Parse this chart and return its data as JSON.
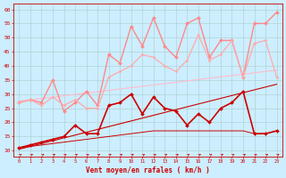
{
  "bg_color": "#cceeff",
  "grid_color": "#aacccc",
  "xlabel": "Vent moyen/en rafales ( km/h )",
  "xlim": [
    -0.5,
    23.5
  ],
  "ylim": [
    8,
    62
  ],
  "yticks": [
    10,
    15,
    20,
    25,
    30,
    35,
    40,
    45,
    50,
    55,
    60
  ],
  "xticks": [
    0,
    1,
    2,
    3,
    4,
    5,
    6,
    7,
    8,
    9,
    10,
    11,
    12,
    13,
    14,
    15,
    16,
    17,
    18,
    19,
    20,
    21,
    22,
    23
  ],
  "lines": [
    {
      "name": "trend_upper_pink",
      "x": [
        0,
        23
      ],
      "y": [
        27.5,
        38.5
      ],
      "color": "#ffbbcc",
      "lw": 0.8,
      "marker": null,
      "zorder": 2
    },
    {
      "name": "trend_lower_red",
      "x": [
        0,
        23
      ],
      "y": [
        10.5,
        33.5
      ],
      "color": "#cc0000",
      "lw": 0.8,
      "marker": null,
      "zorder": 2
    },
    {
      "name": "wavy_upper_pink",
      "x": [
        0,
        1,
        2,
        3,
        4,
        5,
        6,
        7,
        8,
        9,
        10,
        11,
        12,
        13,
        14,
        15,
        16,
        17,
        18,
        19,
        20,
        21,
        22,
        23
      ],
      "y": [
        27,
        28,
        27,
        35,
        24,
        27,
        31,
        26,
        44,
        41,
        54,
        47,
        57,
        47,
        43,
        55,
        57,
        43,
        49,
        49,
        36,
        55,
        55,
        59
      ],
      "color": "#ff8888",
      "lw": 1.0,
      "marker": "D",
      "ms": 2.0,
      "zorder": 3
    },
    {
      "name": "wavy_mid_pink",
      "x": [
        0,
        1,
        2,
        3,
        4,
        5,
        6,
        7,
        8,
        9,
        10,
        11,
        12,
        13,
        14,
        15,
        16,
        17,
        18,
        19,
        20,
        21,
        22,
        23
      ],
      "y": [
        27,
        28,
        26,
        29,
        26,
        28,
        25,
        25,
        36,
        38,
        40,
        44,
        43,
        40,
        38,
        42,
        51,
        42,
        44,
        49,
        36,
        48,
        49,
        36
      ],
      "color": "#ffaaaa",
      "lw": 0.9,
      "marker": "D",
      "ms": 1.5,
      "zorder": 3
    },
    {
      "name": "wavy_lower_red",
      "x": [
        0,
        1,
        2,
        3,
        4,
        5,
        6,
        7,
        8,
        9,
        10,
        11,
        12,
        13,
        14,
        15,
        16,
        17,
        18,
        19,
        20,
        21,
        22,
        23
      ],
      "y": [
        11,
        12,
        13,
        14,
        15,
        19,
        16,
        16,
        26,
        27,
        30,
        23,
        29,
        25,
        24,
        19,
        23,
        20,
        25,
        27,
        31,
        16,
        16,
        17
      ],
      "color": "#cc0000",
      "lw": 1.2,
      "marker": "D",
      "ms": 2.0,
      "zorder": 4
    },
    {
      "name": "flat_lower_red",
      "x": [
        0,
        1,
        2,
        3,
        4,
        5,
        6,
        7,
        8,
        9,
        10,
        11,
        12,
        13,
        14,
        15,
        16,
        17,
        18,
        19,
        20,
        21,
        22,
        23
      ],
      "y": [
        11,
        11.5,
        12,
        12.5,
        13,
        13.5,
        14,
        14.5,
        15,
        15.5,
        16,
        16.5,
        17,
        17,
        17,
        17,
        17,
        17,
        17,
        17,
        17,
        16,
        16,
        17
      ],
      "color": "#cc0000",
      "lw": 0.7,
      "marker": null,
      "zorder": 2
    }
  ],
  "arrow_color": "#cc0000",
  "tick_color": "#cc0000",
  "xlabel_color": "#cc0000",
  "xlabel_fontsize": 5.5,
  "ytick_fontsize": 4.5,
  "xtick_fontsize": 3.8
}
